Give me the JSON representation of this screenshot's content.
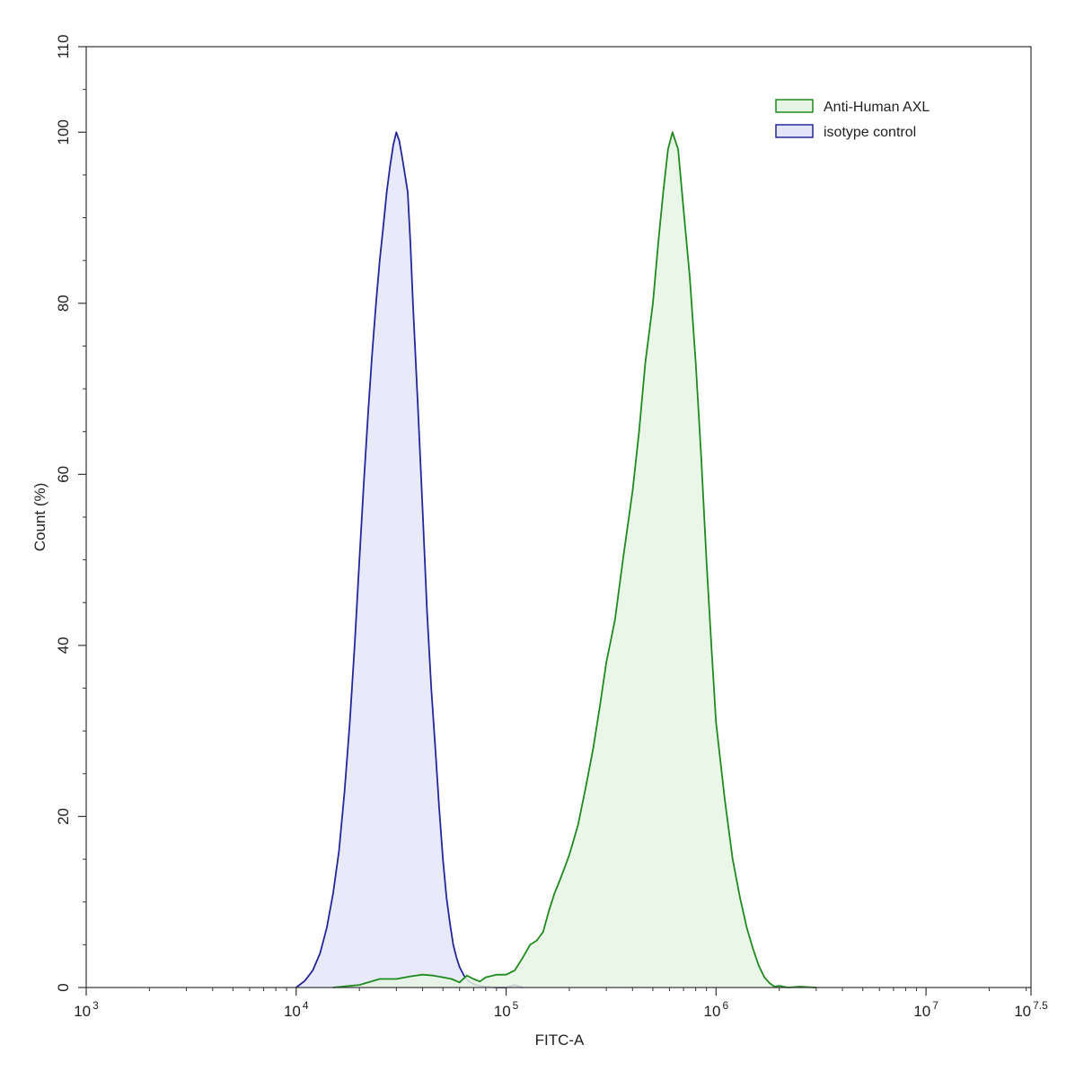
{
  "chart_data": {
    "type": "area",
    "xscale": "log",
    "xlim": [
      1000,
      31622776.6
    ],
    "ylim": [
      0,
      110
    ],
    "grid": false,
    "xlabel": "FITC-A",
    "ylabel": "Count  (%)",
    "legend_position": "top-right",
    "x_ticks": [
      {
        "base": "10",
        "exp": "3",
        "value": 1000
      },
      {
        "base": "10",
        "exp": "4",
        "value": 10000
      },
      {
        "base": "10",
        "exp": "5",
        "value": 100000
      },
      {
        "base": "10",
        "exp": "6",
        "value": 1000000
      },
      {
        "base": "10",
        "exp": "7",
        "value": 10000000
      },
      {
        "base": "10",
        "exp": "7.5",
        "value": 31622776.6
      }
    ],
    "y_ticks": [
      "0",
      "20",
      "40",
      "60",
      "80",
      "100",
      "110"
    ],
    "series": [
      {
        "name": "Anti-Human AXL",
        "stroke": "#1f8a1f",
        "fill": "#e6f4e4",
        "x": [
          15000,
          20000,
          25000,
          30000,
          35000,
          40000,
          45000,
          50000,
          55000,
          60000,
          65000,
          70000,
          75000,
          80000,
          90000,
          100000,
          110000,
          120000,
          130000,
          140000,
          150000,
          160000,
          170000,
          180000,
          190000,
          200000,
          220000,
          240000,
          260000,
          280000,
          300000,
          330000,
          360000,
          400000,
          430000,
          460000,
          500000,
          530000,
          560000,
          590000,
          620000,
          660000,
          700000,
          750000,
          800000,
          850000,
          900000,
          950000,
          1000000,
          1100000,
          1200000,
          1300000,
          1400000,
          1500000,
          1600000,
          1700000,
          1800000,
          1900000,
          2000000,
          2200000,
          2500000,
          3000000
        ],
        "values": [
          0,
          0.3,
          1.0,
          1.0,
          1.3,
          1.5,
          1.4,
          1.2,
          1.0,
          0.6,
          1.4,
          1.0,
          0.7,
          1.2,
          1.5,
          1.5,
          2.0,
          3.5,
          5.0,
          5.5,
          6.5,
          9.0,
          11.0,
          12.5,
          14.0,
          15.5,
          19.0,
          23.5,
          28.0,
          33.0,
          38.0,
          43.0,
          50.0,
          58.0,
          65.0,
          73.0,
          80.0,
          87.0,
          93.0,
          98.0,
          100.0,
          98.0,
          91.0,
          83.0,
          73.0,
          62.0,
          50.0,
          40.0,
          31.0,
          22.0,
          15.0,
          10.5,
          7.0,
          4.5,
          2.5,
          1.2,
          0.5,
          0.1,
          0.2,
          0,
          0.1,
          0
        ]
      },
      {
        "name": "isotype control",
        "stroke": "#23279a",
        "fill": "#e4e5f8",
        "x": [
          10000,
          11000,
          12000,
          13000,
          14000,
          15000,
          16000,
          17000,
          18000,
          19000,
          20000,
          21000,
          22000,
          23000,
          24000,
          25000,
          26000,
          27000,
          28000,
          29000,
          30000,
          31000,
          32000,
          33000,
          34000,
          35000,
          36000,
          38000,
          40000,
          42000,
          44000,
          46000,
          48000,
          50000,
          52000,
          54000,
          56000,
          58000,
          60000,
          63000,
          66000,
          70000,
          75000,
          80000,
          90000,
          100000,
          110000,
          120000
        ],
        "values": [
          0,
          0.8,
          2.0,
          4.0,
          7.0,
          11.0,
          16.0,
          23.0,
          31.0,
          40.0,
          50.0,
          59.0,
          67.0,
          74.0,
          80.0,
          85.0,
          89.0,
          93.0,
          96.0,
          98.5,
          100.0,
          99.0,
          97.0,
          95.0,
          93.0,
          87.0,
          80.0,
          68.0,
          56.0,
          44.0,
          35.0,
          28.0,
          21.0,
          15.0,
          10.5,
          7.5,
          5.0,
          3.5,
          2.4,
          1.4,
          0.8,
          0.4,
          0.2,
          0.1,
          0,
          0,
          0.3,
          0
        ]
      }
    ]
  }
}
